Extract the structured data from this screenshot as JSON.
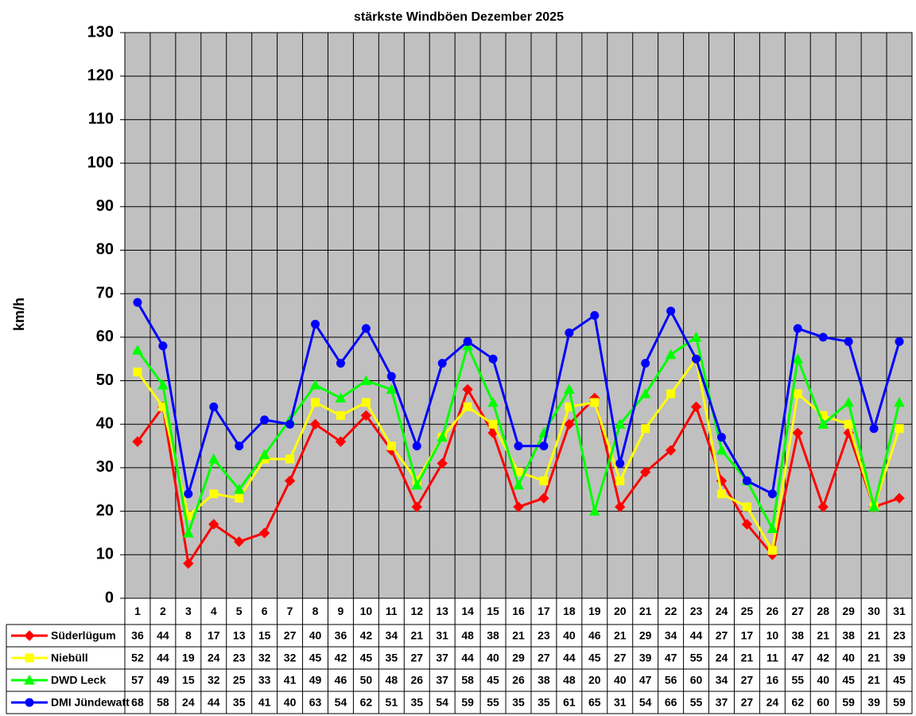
{
  "chart_data": {
    "type": "line",
    "title": "stärkste Windböen Dezember 2025",
    "y_label": "km/h",
    "categories": [
      "1",
      "2",
      "3",
      "4",
      "5",
      "6",
      "7",
      "8",
      "9",
      "10",
      "11",
      "12",
      "13",
      "14",
      "15",
      "16",
      "17",
      "18",
      "19",
      "20",
      "21",
      "22",
      "23",
      "24",
      "25",
      "26",
      "27",
      "28",
      "29",
      "30",
      "31"
    ],
    "series": [
      {
        "name": "Süderlügum",
        "color": "#ff0000",
        "marker": "diamond",
        "values": [
          36,
          44,
          8,
          17,
          13,
          15,
          27,
          40,
          36,
          42,
          34,
          21,
          31,
          48,
          38,
          21,
          23,
          40,
          46,
          21,
          29,
          34,
          44,
          27,
          17,
          10,
          38,
          21,
          38,
          21,
          23
        ]
      },
      {
        "name": "Niebüll",
        "color": "#ffff00",
        "marker": "square",
        "values": [
          52,
          44,
          19,
          24,
          23,
          32,
          32,
          45,
          42,
          45,
          35,
          27,
          37,
          44,
          40,
          29,
          27,
          44,
          45,
          27,
          39,
          47,
          55,
          24,
          21,
          11,
          47,
          42,
          40,
          21,
          39
        ]
      },
      {
        "name": "DWD Leck",
        "color": "#00ff00",
        "marker": "triangle",
        "values": [
          57,
          49,
          15,
          32,
          25,
          33,
          41,
          49,
          46,
          50,
          48,
          26,
          37,
          58,
          45,
          26,
          38,
          48,
          20,
          40,
          47,
          56,
          60,
          34,
          27,
          16,
          55,
          40,
          45,
          21,
          45
        ]
      },
      {
        "name": "DMI Jündewatt",
        "color": "#0000ff",
        "marker": "circle",
        "values": [
          68,
          58,
          24,
          44,
          35,
          41,
          40,
          63,
          54,
          62,
          51,
          35,
          54,
          59,
          55,
          35,
          35,
          61,
          65,
          31,
          54,
          66,
          55,
          37,
          27,
          24,
          62,
          60,
          59,
          39,
          59
        ]
      }
    ],
    "ylim": [
      0,
      130
    ],
    "yticks": [
      0,
      10,
      20,
      30,
      40,
      50,
      60,
      70,
      80,
      90,
      100,
      110,
      120,
      130
    ],
    "grid": true,
    "data_table": true
  }
}
